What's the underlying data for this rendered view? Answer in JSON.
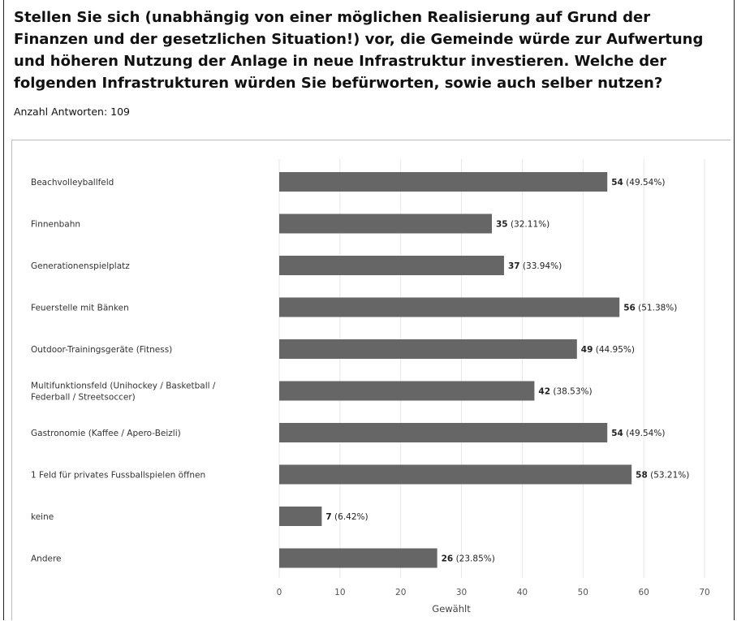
{
  "question": "Stellen Sie sich (unabhängig von einer möglichen Realisierung auf Grund der Finanzen und der gesetzlichen Situation!) vor, die Gemeinde würde zur Aufwertung und höheren Nutzung der Anlage in neue Infrastruktur investieren. Welche der folgenden Infrastrukturen würden Sie befürworten, sowie auch selber nutzen?",
  "answers_label": "Anzahl Antworten: 109",
  "colors": {
    "bar": "#666666",
    "grid": "#e6e6e6",
    "text": "#333333"
  },
  "chart_data": {
    "type": "bar",
    "orientation": "horizontal",
    "title": "",
    "xlabel": "Gewählt",
    "ylabel": "",
    "xlim": [
      0,
      70
    ],
    "xticks": [
      0,
      10,
      20,
      30,
      40,
      50,
      60,
      70
    ],
    "grid": true,
    "categories": [
      [
        "Beachvolleyballfeld"
      ],
      [
        "Finnenbahn"
      ],
      [
        "Generationenspielplatz"
      ],
      [
        "Feuerstelle mit Bänken"
      ],
      [
        "Outdoor-Trainingsgeräte (Fitness)"
      ],
      [
        "Multifunktionsfeld (Unihockey / Basketball /",
        "Federball / Streetsoccer)"
      ],
      [
        "Gastronomie (Kaffee / Apero-Beizli)"
      ],
      [
        "1 Feld für privates Fussballspielen öffnen"
      ],
      [
        "keine"
      ],
      [
        "Andere"
      ]
    ],
    "values": [
      54,
      35,
      37,
      56,
      49,
      42,
      54,
      58,
      7,
      26
    ],
    "percent_labels": [
      "(49.54%)",
      "(32.11%)",
      "(33.94%)",
      "(51.38%)",
      "(44.95%)",
      "(38.53%)",
      "(49.54%)",
      "(53.21%)",
      "(6.42%)",
      "(23.85%)"
    ]
  }
}
